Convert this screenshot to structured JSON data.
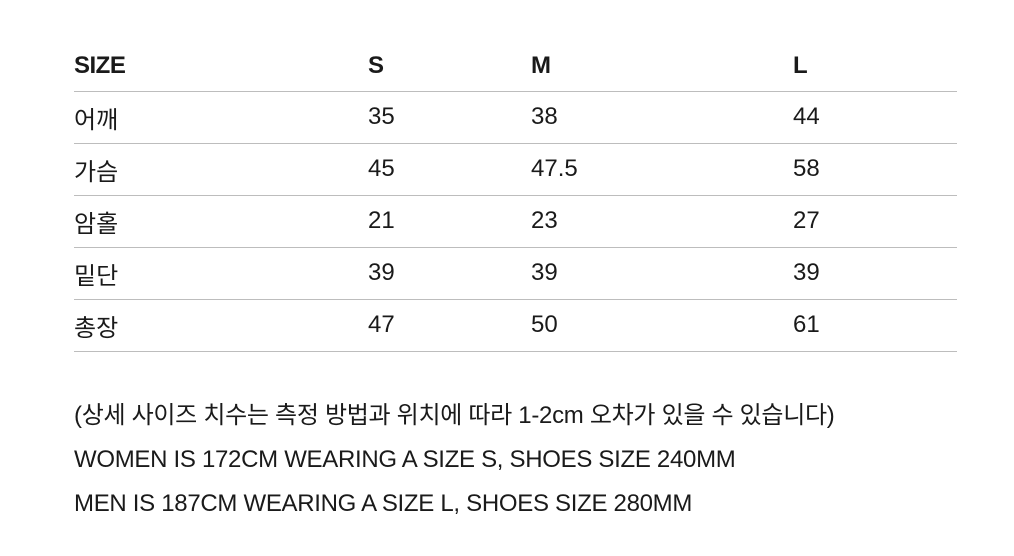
{
  "size_table": {
    "headers": [
      "SIZE",
      "S",
      "M",
      "L"
    ],
    "rows": [
      {
        "label": "어깨",
        "s": "35",
        "m": "38",
        "l": "44"
      },
      {
        "label": "가슴",
        "s": "45",
        "m": "47.5",
        "l": "58"
      },
      {
        "label": "암홀",
        "s": "21",
        "m": "23",
        "l": "27"
      },
      {
        "label": "밑단",
        "s": "39",
        "m": "39",
        "l": "39"
      },
      {
        "label": "총장",
        "s": "47",
        "m": "50",
        "l": "61"
      }
    ]
  },
  "notes": {
    "disclaimer": "(상세 사이즈 치수는 측정 방법과 위치에 따라 1-2cm 오차가 있을 수 있습니다)",
    "women_fit": "WOMEN IS 172CM WEARING A SIZE S, SHOES SIZE 240MM",
    "men_fit": "MEN IS 187CM WEARING A SIZE L, SHOES SIZE 280MM"
  },
  "colors": {
    "text": "#1a1a1a",
    "rule": "#bdbdbd",
    "background": "#ffffff"
  }
}
